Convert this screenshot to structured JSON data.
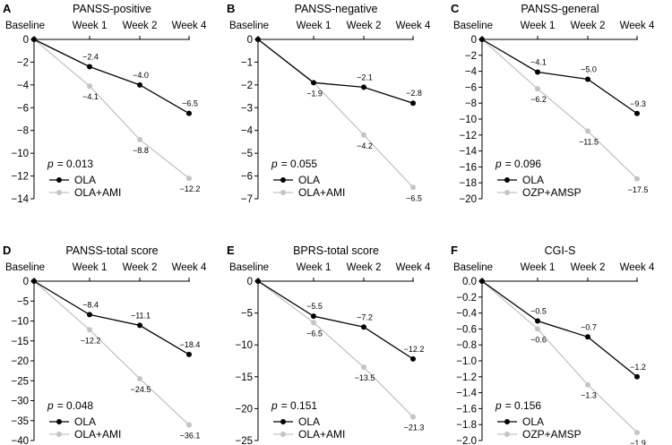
{
  "chart_data": [
    {
      "type": "line",
      "letter": "A",
      "title": "PANSS-positive",
      "categories": [
        "Baseline",
        "Week 1",
        "Week 2",
        "Week 4"
      ],
      "ylim": [
        -14,
        0
      ],
      "yticks": [
        0,
        -2,
        -4,
        -6,
        -8,
        -10,
        -12,
        -14
      ],
      "ytick_labels": [
        "0",
        "−2",
        "−4",
        "−6",
        "−8",
        "−10",
        "−12",
        "−14"
      ],
      "p_prefix": "p",
      "p_value": "= 0.013",
      "series": [
        {
          "name": "OLA",
          "color": "#000000",
          "values": [
            0,
            -2.4,
            -4.0,
            -6.5
          ],
          "labels": [
            "",
            "−2.4",
            "−4.0",
            "−6.5"
          ]
        },
        {
          "name": "OLA+AMI",
          "color": "#c4c4c4",
          "values": [
            0,
            -4.1,
            -8.8,
            -12.2
          ],
          "labels": [
            "",
            "−4.1",
            "−8.8",
            "−12.2"
          ]
        }
      ]
    },
    {
      "type": "line",
      "letter": "B",
      "title": "PANSS-negative",
      "categories": [
        "Baseline",
        "Week 1",
        "Week 2",
        "Week 4"
      ],
      "ylim": [
        -7,
        0
      ],
      "yticks": [
        0,
        -1,
        -2,
        -3,
        -4,
        -5,
        -6,
        -7
      ],
      "ytick_labels": [
        "0",
        "−1",
        "−2",
        "−3",
        "−4",
        "−5",
        "−6",
        "−7"
      ],
      "p_prefix": "p",
      "p_value": "= 0.055",
      "series": [
        {
          "name": "OLA",
          "color": "#000000",
          "values": [
            0,
            -1.9,
            -2.1,
            -2.8
          ],
          "labels": [
            "",
            "",
            "−2.1",
            "−2.8"
          ]
        },
        {
          "name": "OLA+AMI",
          "color": "#c4c4c4",
          "values": [
            0,
            -1.9,
            -4.2,
            -6.5
          ],
          "labels": [
            "",
            "−1.9",
            "−4.2",
            "−6.5"
          ]
        }
      ]
    },
    {
      "type": "line",
      "letter": "C",
      "title": "PANSS-general",
      "categories": [
        "Baseline",
        "Week 1",
        "Week 2",
        "Week 4"
      ],
      "ylim": [
        -20,
        0
      ],
      "yticks": [
        0,
        -2,
        -4,
        -6,
        -8,
        -10,
        -12,
        -14,
        -16,
        -18,
        -20
      ],
      "ytick_labels": [
        "0",
        "−2",
        "−4",
        "−6",
        "−8",
        "−10",
        "−12",
        "−14",
        "−16",
        "−18",
        "−20"
      ],
      "p_prefix": "p",
      "p_value": "= 0.096",
      "series": [
        {
          "name": "OLA",
          "color": "#000000",
          "values": [
            0,
            -4.1,
            -5.0,
            -9.3
          ],
          "labels": [
            "",
            "−4.1",
            "−5.0",
            "−9.3"
          ]
        },
        {
          "name": "OZP+AMSP",
          "color": "#c4c4c4",
          "values": [
            0,
            -6.2,
            -11.5,
            -17.5
          ],
          "labels": [
            "",
            "−6.2",
            "−11.5",
            "−17.5"
          ]
        }
      ]
    },
    {
      "type": "line",
      "letter": "D",
      "title": "PANSS-total score",
      "categories": [
        "Baseline",
        "Week 1",
        "Week 2",
        "Week 4"
      ],
      "ylim": [
        -40,
        0
      ],
      "yticks": [
        0,
        -5,
        -10,
        -15,
        -20,
        -25,
        -30,
        -35,
        -40
      ],
      "ytick_labels": [
        "0",
        "−5",
        "−10",
        "−15",
        "−20",
        "−25",
        "−30",
        "−35",
        "−40"
      ],
      "p_prefix": "p",
      "p_value": "= 0.048",
      "series": [
        {
          "name": "OLA",
          "color": "#000000",
          "values": [
            0,
            -8.4,
            -11.1,
            -18.4
          ],
          "labels": [
            "",
            "−8.4",
            "−11.1",
            "−18.4"
          ]
        },
        {
          "name": "OLA+AMI",
          "color": "#c4c4c4",
          "values": [
            0,
            -12.2,
            -24.5,
            -36.1
          ],
          "labels": [
            "",
            "−12.2",
            "−24.5",
            "−36.1"
          ]
        }
      ]
    },
    {
      "type": "line",
      "letter": "E",
      "title": "BPRS-total score",
      "categories": [
        "Baseline",
        "Week 1",
        "Week 2",
        "Week 4"
      ],
      "ylim": [
        -25,
        0
      ],
      "yticks": [
        0,
        -5,
        -10,
        -15,
        -20,
        -25
      ],
      "ytick_labels": [
        "0",
        "−5",
        "−10",
        "−15",
        "−20",
        "−25"
      ],
      "p_prefix": "p",
      "p_value": "= 0.151",
      "series": [
        {
          "name": "OLA",
          "color": "#000000",
          "values": [
            0,
            -5.5,
            -7.2,
            -12.2
          ],
          "labels": [
            "",
            "−5.5",
            "−7.2",
            "−12.2"
          ]
        },
        {
          "name": "OLA+AMI",
          "color": "#c4c4c4",
          "values": [
            0,
            -6.5,
            -13.5,
            -21.3
          ],
          "labels": [
            "",
            "−6.5",
            "−13.5",
            "−21.3"
          ]
        }
      ]
    },
    {
      "type": "line",
      "letter": "F",
      "title": "CGI-S",
      "categories": [
        "Baseline",
        "Week 1",
        "Week 2",
        "Week 4"
      ],
      "ylim": [
        -2.0,
        0
      ],
      "yticks": [
        0,
        -0.2,
        -0.4,
        -0.6,
        -0.8,
        -1.0,
        -1.2,
        -1.4,
        -1.6,
        -1.8,
        -2.0
      ],
      "ytick_labels": [
        "0.0",
        "−0.2",
        "−0.4",
        "−0.6",
        "−0.8",
        "−1.0",
        "−1.2",
        "−1.4",
        "−1.6",
        "−1.8",
        "−2.0"
      ],
      "p_prefix": "p",
      "p_value": "= 0.156",
      "series": [
        {
          "name": "OLA",
          "color": "#000000",
          "values": [
            0,
            -0.5,
            -0.7,
            -1.2
          ],
          "labels": [
            "",
            "−0.5",
            "−0.7",
            "−1.2"
          ]
        },
        {
          "name": "OZP+AMSP",
          "color": "#c4c4c4",
          "values": [
            0,
            -0.6,
            -1.3,
            -1.9
          ],
          "labels": [
            "",
            "−0.6",
            "−1.3",
            "−1.9"
          ]
        }
      ]
    }
  ]
}
